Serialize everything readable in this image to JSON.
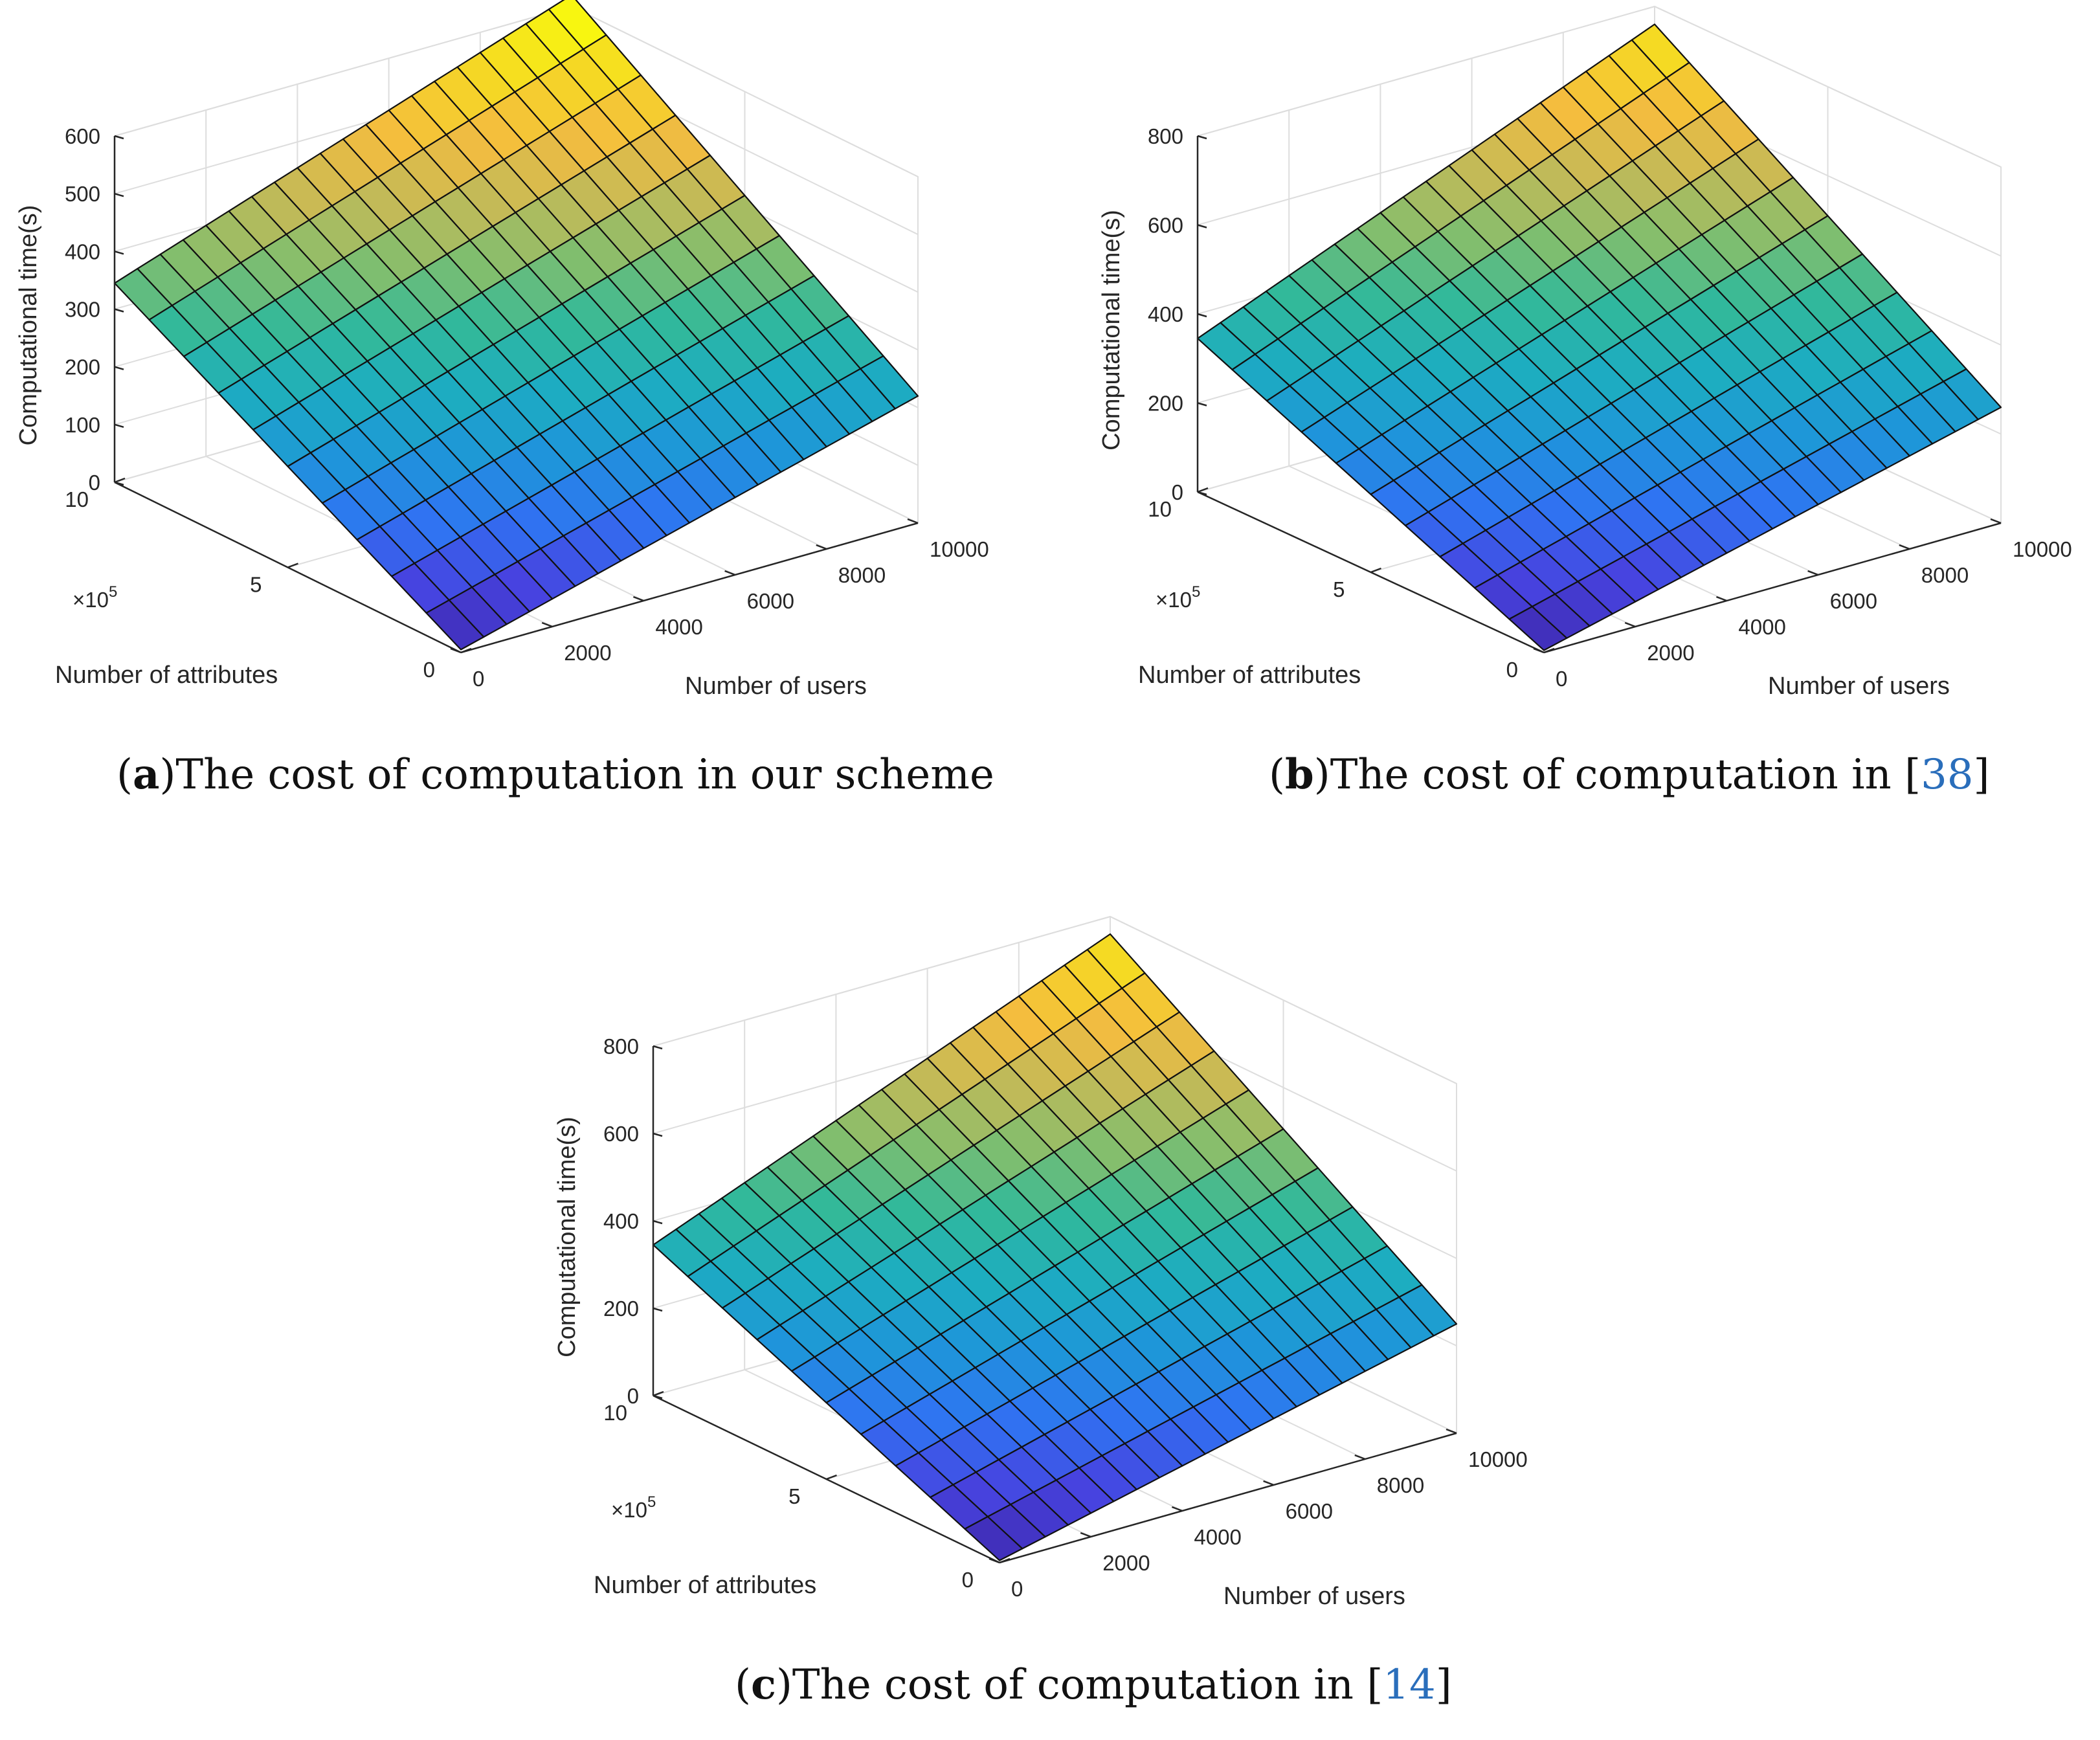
{
  "colors": {
    "colormap": [
      "#3e26a8",
      "#4743e0",
      "#2f74f2",
      "#1e96d9",
      "#1dadc0",
      "#32b99a",
      "#81be6e",
      "#c2ba58",
      "#f4bc3f",
      "#f5d824",
      "#f8fa0d"
    ],
    "grid": "#dddddd",
    "axis": "#262626",
    "mesh_edge": "#111111",
    "ref_link": "#2a6ebb"
  },
  "chart_data": [
    {
      "type": "surface",
      "title": "",
      "caption": {
        "letter": "a",
        "text": "The cost of computation in our scheme",
        "ref": ""
      },
      "xlabel": "Number of users",
      "ylabel": "Number of attributes",
      "zlabel": "Computational time(s)",
      "xlim": [
        0,
        10000
      ],
      "ylim": [
        0,
        1000000
      ],
      "zlim": [
        0,
        600
      ],
      "xticks": [
        "0",
        "2000",
        "4000",
        "6000",
        "8000",
        "10000"
      ],
      "yticks": [
        "0",
        "5",
        "10"
      ],
      "y_exponent": {
        "base": "×10",
        "power": "5"
      },
      "zticks": [
        "0",
        "100",
        "200",
        "300",
        "400",
        "500",
        "600"
      ],
      "grid": true,
      "surface": {
        "x_steps": 20,
        "y_steps": 10,
        "corners": {
          "at_x0_y0": 5,
          "at_x10000_y0": 220,
          "at_x0_y1e6": 345,
          "at_x10000_y1e6": 620
        }
      }
    },
    {
      "type": "surface",
      "title": "",
      "caption": {
        "letter": "b",
        "text": "The cost of computation in [",
        "ref": "38"
      },
      "xlabel": "Number of users",
      "ylabel": "Number of attributes",
      "zlabel": "Computational time(s)",
      "xlim": [
        0,
        10000
      ],
      "ylim": [
        0,
        1000000
      ],
      "zlim": [
        0,
        800
      ],
      "xticks": [
        "0",
        "2000",
        "4000",
        "6000",
        "8000",
        "10000"
      ],
      "yticks": [
        "0",
        "5",
        "10"
      ],
      "y_exponent": {
        "base": "×10",
        "power": "5"
      },
      "zticks": [
        "0",
        "200",
        "400",
        "600",
        "800"
      ],
      "grid": true,
      "surface": {
        "x_steps": 20,
        "y_steps": 10,
        "corners": {
          "at_x0_y0": 5,
          "at_x10000_y0": 260,
          "at_x0_y1e6": 345,
          "at_x10000_y1e6": 760
        }
      }
    },
    {
      "type": "surface",
      "title": "",
      "caption": {
        "letter": "c",
        "text": "The cost of computation in [",
        "ref": "14"
      },
      "xlabel": "Number of users",
      "ylabel": "Number of attributes",
      "zlabel": "Computational time(s)",
      "xlim": [
        0,
        10000
      ],
      "ylim": [
        0,
        1000000
      ],
      "zlim": [
        0,
        800
      ],
      "xticks": [
        "0",
        "2000",
        "4000",
        "6000",
        "8000",
        "10000"
      ],
      "yticks": [
        "0",
        "5",
        "10"
      ],
      "y_exponent": {
        "base": "×10",
        "power": "5"
      },
      "zticks": [
        "0",
        "200",
        "400",
        "600",
        "800"
      ],
      "grid": true,
      "surface": {
        "x_steps": 20,
        "y_steps": 10,
        "corners": {
          "at_x0_y0": 5,
          "at_x10000_y0": 250,
          "at_x0_y1e6": 345,
          "at_x10000_y1e6": 760
        }
      }
    }
  ]
}
